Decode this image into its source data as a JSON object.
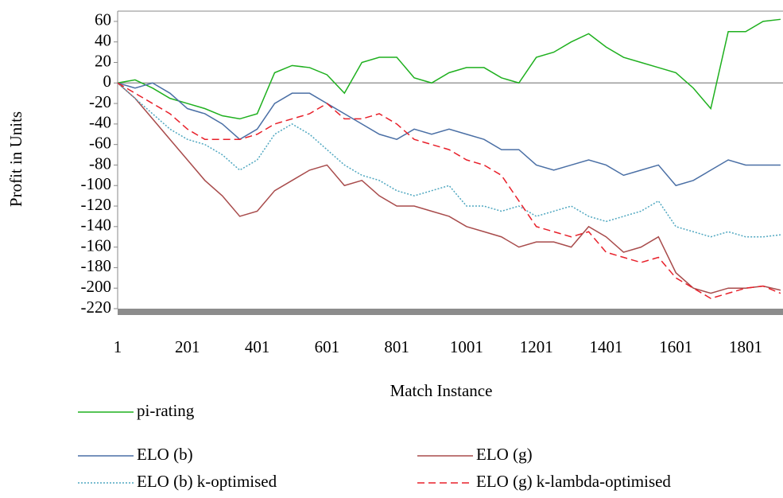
{
  "chart_data": {
    "type": "line",
    "x_label": "Match Instance",
    "y_label": "Profit in Units",
    "x": [
      1,
      51,
      101,
      151,
      201,
      251,
      301,
      351,
      401,
      451,
      501,
      551,
      601,
      651,
      701,
      751,
      801,
      851,
      901,
      951,
      1001,
      1051,
      1101,
      1151,
      1201,
      1251,
      1301,
      1351,
      1401,
      1451,
      1501,
      1551,
      1601,
      1651,
      1701,
      1751,
      1801,
      1851,
      1901
    ],
    "xlim": [
      1,
      1908
    ],
    "xticks": [
      1,
      201,
      401,
      601,
      801,
      1001,
      1201,
      1401,
      1601,
      1801
    ],
    "ylim": [
      -220,
      70
    ],
    "yticks": [
      60,
      40,
      20,
      0,
      -20,
      -40,
      -60,
      -80,
      -100,
      -120,
      -140,
      -160,
      -180,
      -200,
      -220
    ],
    "zero_line": true,
    "series": [
      {
        "name": "pi-rating",
        "color": "#1fb01f",
        "dash": "solid",
        "values": [
          0,
          3,
          -5,
          -15,
          -20,
          -25,
          -32,
          -35,
          -30,
          10,
          17,
          15,
          8,
          -10,
          20,
          25,
          25,
          5,
          0,
          10,
          15,
          15,
          5,
          0,
          25,
          30,
          40,
          48,
          35,
          25,
          20,
          15,
          10,
          -5,
          -25,
          50,
          50,
          60,
          62
        ]
      },
      {
        "name": "ELO (b)",
        "color": "#4a6fa5",
        "dash": "solid",
        "values": [
          0,
          -5,
          0,
          -10,
          -25,
          -30,
          -40,
          -55,
          -45,
          -20,
          -10,
          -10,
          -20,
          -30,
          -40,
          -50,
          -55,
          -45,
          -50,
          -45,
          -50,
          -55,
          -65,
          -65,
          -80,
          -85,
          -80,
          -75,
          -80,
          -90,
          -85,
          -80,
          -100,
          -95,
          -85,
          -75,
          -80,
          -80,
          -80
        ]
      },
      {
        "name": "ELO (g)",
        "color": "#a84b4b",
        "dash": "solid",
        "values": [
          0,
          -15,
          -35,
          -55,
          -75,
          -95,
          -110,
          -130,
          -125,
          -105,
          -95,
          -85,
          -80,
          -100,
          -95,
          -110,
          -120,
          -120,
          -125,
          -130,
          -140,
          -145,
          -150,
          -160,
          -155,
          -155,
          -160,
          -140,
          -150,
          -165,
          -160,
          -150,
          -185,
          -200,
          -205,
          -200,
          -200,
          -198,
          -202
        ]
      },
      {
        "name": "ELO (b) k-optimised",
        "color": "#4fa7c0",
        "dash": "dot",
        "values": [
          0,
          -15,
          -30,
          -45,
          -55,
          -60,
          -70,
          -85,
          -75,
          -50,
          -40,
          -50,
          -65,
          -80,
          -90,
          -95,
          -105,
          -110,
          -105,
          -100,
          -120,
          -120,
          -125,
          -120,
          -130,
          -125,
          -120,
          -130,
          -135,
          -130,
          -125,
          -115,
          -140,
          -145,
          -150,
          -145,
          -150,
          -150,
          -148
        ]
      },
      {
        "name": "ELO (g) k-lambda-optimised",
        "color": "#e8202a",
        "dash": "dash",
        "values": [
          0,
          -10,
          -20,
          -30,
          -45,
          -55,
          -55,
          -55,
          -50,
          -40,
          -35,
          -30,
          -20,
          -35,
          -35,
          -30,
          -40,
          -55,
          -60,
          -65,
          -75,
          -80,
          -90,
          -115,
          -140,
          -145,
          -150,
          -145,
          -165,
          -170,
          -175,
          -170,
          -190,
          -200,
          -210,
          -205,
          -200,
          -198,
          -205
        ]
      }
    ]
  }
}
